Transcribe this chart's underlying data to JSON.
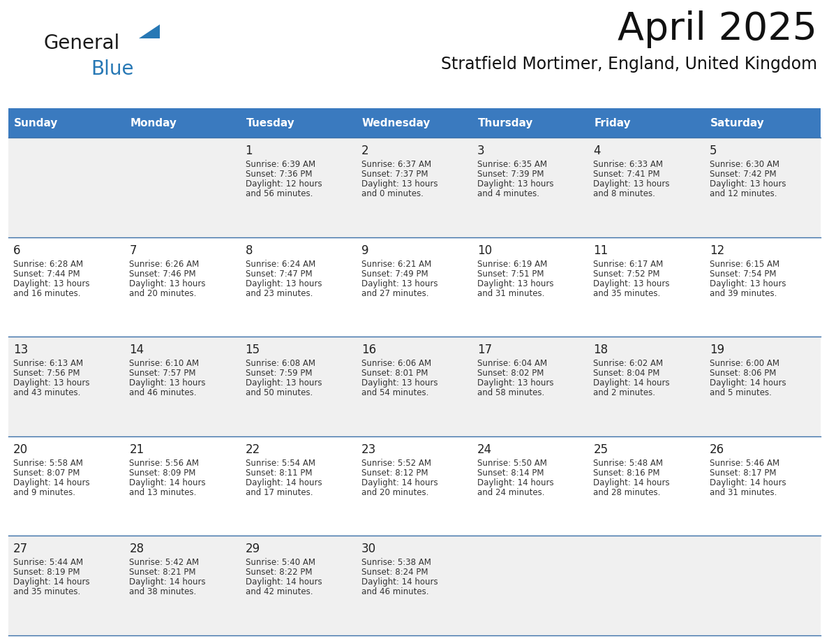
{
  "title": "April 2025",
  "subtitle": "Stratfield Mortimer, England, United Kingdom",
  "header_bg": "#3a7abf",
  "header_text_color": "#ffffff",
  "cell_bg_odd": "#f0f0f0",
  "cell_bg_even": "#ffffff",
  "days_of_week": [
    "Sunday",
    "Monday",
    "Tuesday",
    "Wednesday",
    "Thursday",
    "Friday",
    "Saturday"
  ],
  "logo_color1": "#1a1a1a",
  "logo_color2": "#2778b5",
  "triangle_color": "#2778b5",
  "border_color": "#3a6fa8",
  "text_color": "#333333",
  "day_num_color": "#222222",
  "cal_data": [
    [
      {
        "day": "",
        "sunrise": "",
        "sunset": "",
        "daylight": ""
      },
      {
        "day": "",
        "sunrise": "",
        "sunset": "",
        "daylight": ""
      },
      {
        "day": "1",
        "sunrise": "6:39 AM",
        "sunset": "7:36 PM",
        "daylight": "12 hours and 56 minutes."
      },
      {
        "day": "2",
        "sunrise": "6:37 AM",
        "sunset": "7:37 PM",
        "daylight": "13 hours and 0 minutes."
      },
      {
        "day": "3",
        "sunrise": "6:35 AM",
        "sunset": "7:39 PM",
        "daylight": "13 hours and 4 minutes."
      },
      {
        "day": "4",
        "sunrise": "6:33 AM",
        "sunset": "7:41 PM",
        "daylight": "13 hours and 8 minutes."
      },
      {
        "day": "5",
        "sunrise": "6:30 AM",
        "sunset": "7:42 PM",
        "daylight": "13 hours and 12 minutes."
      }
    ],
    [
      {
        "day": "6",
        "sunrise": "6:28 AM",
        "sunset": "7:44 PM",
        "daylight": "13 hours and 16 minutes."
      },
      {
        "day": "7",
        "sunrise": "6:26 AM",
        "sunset": "7:46 PM",
        "daylight": "13 hours and 20 minutes."
      },
      {
        "day": "8",
        "sunrise": "6:24 AM",
        "sunset": "7:47 PM",
        "daylight": "13 hours and 23 minutes."
      },
      {
        "day": "9",
        "sunrise": "6:21 AM",
        "sunset": "7:49 PM",
        "daylight": "13 hours and 27 minutes."
      },
      {
        "day": "10",
        "sunrise": "6:19 AM",
        "sunset": "7:51 PM",
        "daylight": "13 hours and 31 minutes."
      },
      {
        "day": "11",
        "sunrise": "6:17 AM",
        "sunset": "7:52 PM",
        "daylight": "13 hours and 35 minutes."
      },
      {
        "day": "12",
        "sunrise": "6:15 AM",
        "sunset": "7:54 PM",
        "daylight": "13 hours and 39 minutes."
      }
    ],
    [
      {
        "day": "13",
        "sunrise": "6:13 AM",
        "sunset": "7:56 PM",
        "daylight": "13 hours and 43 minutes."
      },
      {
        "day": "14",
        "sunrise": "6:10 AM",
        "sunset": "7:57 PM",
        "daylight": "13 hours and 46 minutes."
      },
      {
        "day": "15",
        "sunrise": "6:08 AM",
        "sunset": "7:59 PM",
        "daylight": "13 hours and 50 minutes."
      },
      {
        "day": "16",
        "sunrise": "6:06 AM",
        "sunset": "8:01 PM",
        "daylight": "13 hours and 54 minutes."
      },
      {
        "day": "17",
        "sunrise": "6:04 AM",
        "sunset": "8:02 PM",
        "daylight": "13 hours and 58 minutes."
      },
      {
        "day": "18",
        "sunrise": "6:02 AM",
        "sunset": "8:04 PM",
        "daylight": "14 hours and 2 minutes."
      },
      {
        "day": "19",
        "sunrise": "6:00 AM",
        "sunset": "8:06 PM",
        "daylight": "14 hours and 5 minutes."
      }
    ],
    [
      {
        "day": "20",
        "sunrise": "5:58 AM",
        "sunset": "8:07 PM",
        "daylight": "14 hours and 9 minutes."
      },
      {
        "day": "21",
        "sunrise": "5:56 AM",
        "sunset": "8:09 PM",
        "daylight": "14 hours and 13 minutes."
      },
      {
        "day": "22",
        "sunrise": "5:54 AM",
        "sunset": "8:11 PM",
        "daylight": "14 hours and 17 minutes."
      },
      {
        "day": "23",
        "sunrise": "5:52 AM",
        "sunset": "8:12 PM",
        "daylight": "14 hours and 20 minutes."
      },
      {
        "day": "24",
        "sunrise": "5:50 AM",
        "sunset": "8:14 PM",
        "daylight": "14 hours and 24 minutes."
      },
      {
        "day": "25",
        "sunrise": "5:48 AM",
        "sunset": "8:16 PM",
        "daylight": "14 hours and 28 minutes."
      },
      {
        "day": "26",
        "sunrise": "5:46 AM",
        "sunset": "8:17 PM",
        "daylight": "14 hours and 31 minutes."
      }
    ],
    [
      {
        "day": "27",
        "sunrise": "5:44 AM",
        "sunset": "8:19 PM",
        "daylight": "14 hours and 35 minutes."
      },
      {
        "day": "28",
        "sunrise": "5:42 AM",
        "sunset": "8:21 PM",
        "daylight": "14 hours and 38 minutes."
      },
      {
        "day": "29",
        "sunrise": "5:40 AM",
        "sunset": "8:22 PM",
        "daylight": "14 hours and 42 minutes."
      },
      {
        "day": "30",
        "sunrise": "5:38 AM",
        "sunset": "8:24 PM",
        "daylight": "14 hours and 46 minutes."
      },
      {
        "day": "",
        "sunrise": "",
        "sunset": "",
        "daylight": ""
      },
      {
        "day": "",
        "sunrise": "",
        "sunset": "",
        "daylight": ""
      },
      {
        "day": "",
        "sunrise": "",
        "sunset": "",
        "daylight": ""
      }
    ]
  ]
}
